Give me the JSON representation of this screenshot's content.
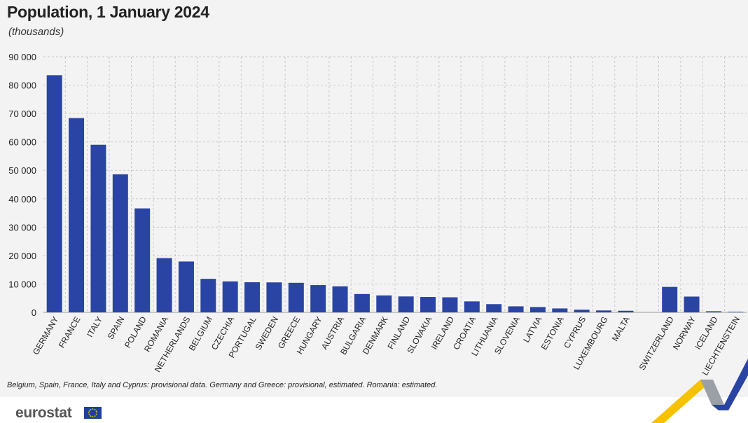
{
  "title": "Population, 1 January 2024",
  "subtitle": "(thousands)",
  "footnote": "Belgium, Spain, France, Italy and Cyprus: provisional data. Germany and Greece: provisional, estimated. Romania: estimated.",
  "brand": "eurostat",
  "colors": {
    "bar": "#2a44a4",
    "grid": "#c9c9c9",
    "background": "#f3f3f3"
  },
  "chart_data": {
    "type": "bar",
    "title": "Population, 1 January 2024",
    "subtitle": "(thousands)",
    "xlabel": "",
    "ylabel": "",
    "ylim": [
      0,
      90000
    ],
    "yticks": [
      0,
      10000,
      20000,
      30000,
      40000,
      50000,
      60000,
      70000,
      80000,
      90000
    ],
    "ytick_labels": [
      "0",
      "10 000",
      "20 000",
      "30 000",
      "40 000",
      "50 000",
      "60 000",
      "70 000",
      "80 000",
      "90 000"
    ],
    "grid": true,
    "legend": "none",
    "categories": [
      "GERMANY",
      "FRANCE",
      "ITALY",
      "SPAIN",
      "POLAND",
      "ROMANIA",
      "NETHERLANDS",
      "BELGIUM",
      "CZECHIA",
      "PORTUGAL",
      "SWEDEN",
      "GREECE",
      "HUNGARY",
      "AUSTRIA",
      "BULGARIA",
      "DENMARK",
      "FINLAND",
      "SLOVAKIA",
      "IRELAND",
      "CROATIA",
      "LITHUANIA",
      "SLOVENIA",
      "LATVIA",
      "ESTONIA",
      "CYPRUS",
      "LUXEMBOURG",
      "MALTA",
      "",
      "SWITZERLAND",
      "NORWAY",
      "ICELAND",
      "LIECHTENSTEIN"
    ],
    "values": [
      83500,
      68400,
      59000,
      48600,
      36600,
      19100,
      17900,
      11800,
      10900,
      10600,
      10550,
      10400,
      9600,
      9150,
      6450,
      5960,
      5600,
      5420,
      5300,
      3860,
      2890,
      2120,
      1870,
      1370,
      930,
      670,
      560,
      null,
      8960,
      5550,
      390,
      40
    ]
  }
}
